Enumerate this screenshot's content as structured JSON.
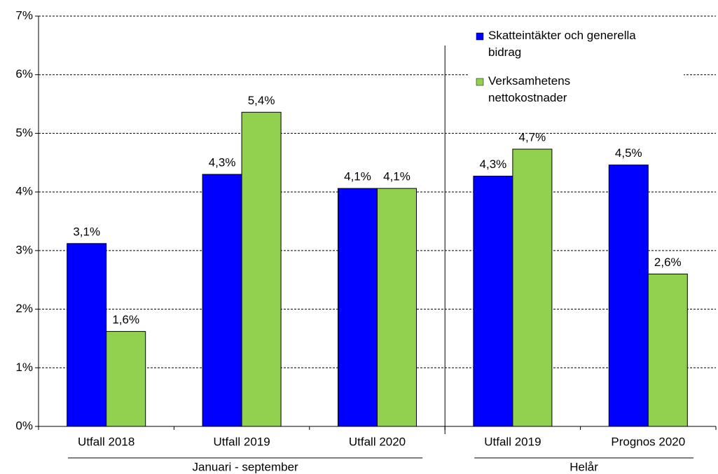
{
  "chart_data": {
    "type": "bar",
    "groups": [
      {
        "label": "Januari - september",
        "categories": [
          "Utfall 2018",
          "Utfall 2019",
          "Utfall 2020"
        ]
      },
      {
        "label": "Helår",
        "categories": [
          "Utfall 2019",
          "Prognos 2020"
        ]
      }
    ],
    "series": [
      {
        "name": "Skatteintäkter och generella bidrag",
        "color": "#0000ff",
        "values": [
          3.12,
          4.3,
          4.06,
          4.27,
          4.46
        ],
        "value_labels": [
          "3,1%",
          "4,3%",
          "4,1%",
          "4,3%",
          "4,5%"
        ]
      },
      {
        "name": "Verksamhetens nettokostnader",
        "color": "#92d050",
        "values": [
          1.62,
          5.36,
          4.06,
          4.73,
          2.6
        ],
        "value_labels": [
          "1,6%",
          "5,4%",
          "4,1%",
          "4,7%",
          "2,6%"
        ]
      }
    ],
    "ylim": [
      0,
      7
    ],
    "yticks": [
      {
        "value": 0,
        "label": "0%"
      },
      {
        "value": 1,
        "label": "1%"
      },
      {
        "value": 2,
        "label": "2%"
      },
      {
        "value": 3,
        "label": "3%"
      },
      {
        "value": 4,
        "label": "4%"
      },
      {
        "value": 5,
        "label": "5%"
      },
      {
        "value": 6,
        "label": "6%"
      },
      {
        "value": 7,
        "label": "7%"
      }
    ],
    "grid": true,
    "legend": "top-right"
  }
}
